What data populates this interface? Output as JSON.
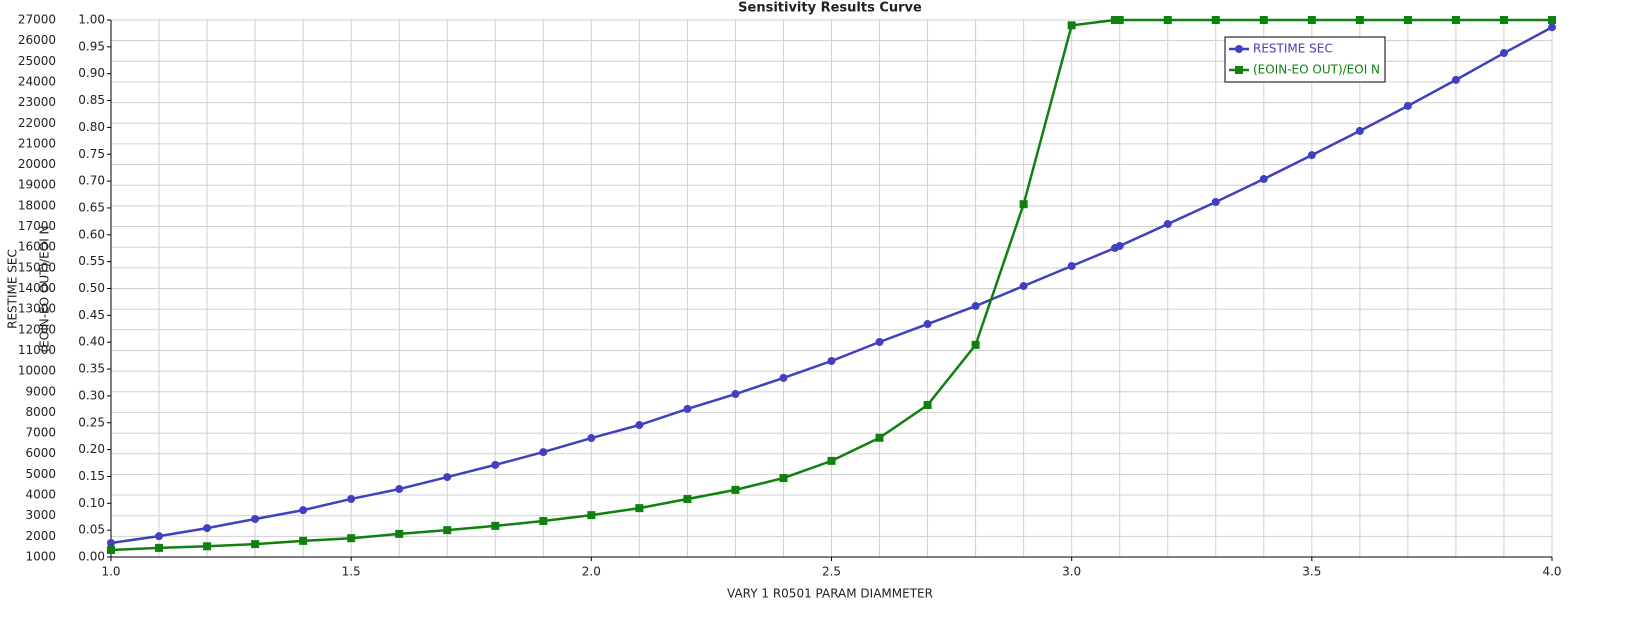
{
  "chart_data": {
    "type": "line",
    "title": "Sensitivity Results Curve",
    "x_label": "VARY    1 R0501 PARAM DIAMMETER",
    "y_label": "RESTIME SEC",
    "y2_label": "(EOIN-EO OUT)/EOI N",
    "x": [
      1.0,
      1.1,
      1.2,
      1.3,
      1.4,
      1.5,
      1.6,
      1.7,
      1.8,
      1.9,
      2.0,
      2.1,
      2.2,
      2.3,
      2.4,
      2.5,
      2.6,
      2.7,
      2.8,
      2.9,
      3.0,
      3.09,
      3.1,
      3.2,
      3.3,
      3.4,
      3.5,
      3.6,
      3.7,
      3.8,
      3.9,
      4.0
    ],
    "series": [
      {
        "name": "RESTIME SEC",
        "color": "#4040c0",
        "marker": "circle",
        "values": [
          1680,
          2010,
          2400,
          2840,
          3270,
          3810,
          4290,
          4870,
          5460,
          6080,
          6760,
          7390,
          8170,
          8890,
          9670,
          10490,
          11410,
          12280,
          13150,
          14120,
          15090,
          15960,
          16060,
          17120,
          18190,
          19300,
          20460,
          21630,
          22840,
          24100,
          25400,
          26650
        ]
      },
      {
        "name": "(EOIN-EO OUT)/EOI N",
        "color": "#108010",
        "marker": "square",
        "axis": "y2",
        "values": [
          0.013,
          0.017,
          0.02,
          0.024,
          0.03,
          0.035,
          0.043,
          0.05,
          0.058,
          0.067,
          0.078,
          0.091,
          0.108,
          0.125,
          0.147,
          0.179,
          0.222,
          0.283,
          0.395,
          0.657,
          0.99,
          1.0,
          1.0,
          1.0,
          1.0,
          1.0,
          1.0,
          1.0,
          1.0,
          1.0,
          1.0,
          1.0
        ]
      }
    ],
    "xlim": [
      1.0,
      4.0
    ],
    "xticks": [
      {
        "value": 1.0,
        "label": "1.0"
      },
      {
        "value": 1.5,
        "label": "1.5"
      },
      {
        "value": 2.0,
        "label": "2.0"
      },
      {
        "value": 2.5,
        "label": "2.5"
      },
      {
        "value": 3.0,
        "label": "3.0"
      },
      {
        "value": 3.5,
        "label": "3.5"
      },
      {
        "value": 4.0,
        "label": "4.0"
      }
    ],
    "xminorticks": [
      1.1,
      1.2,
      1.3,
      1.4,
      1.6,
      1.7,
      1.8,
      1.9,
      2.1,
      2.2,
      2.3,
      2.4,
      2.6,
      2.7,
      2.8,
      2.9,
      3.1,
      3.2,
      3.3,
      3.4,
      3.6,
      3.7,
      3.8,
      3.9
    ],
    "ylim": [
      1000,
      27000
    ],
    "yticks": [
      1000,
      2000,
      3000,
      4000,
      5000,
      6000,
      7000,
      8000,
      9000,
      10000,
      11000,
      12000,
      13000,
      14000,
      15000,
      16000,
      17000,
      18000,
      19000,
      20000,
      21000,
      22000,
      23000,
      24000,
      25000,
      26000,
      27000
    ],
    "y2lim": [
      0,
      1
    ],
    "y2ticks": [
      {
        "value": 0,
        "label": "0.00"
      },
      {
        "value": 0.05,
        "label": "0.05"
      },
      {
        "value": 0.1,
        "label": "0.10"
      },
      {
        "value": 0.15,
        "label": "0.15"
      },
      {
        "value": 0.2,
        "label": "0.20"
      },
      {
        "value": 0.25,
        "label": "0.25"
      },
      {
        "value": 0.3,
        "label": "0.30"
      },
      {
        "value": 0.35,
        "label": "0.35"
      },
      {
        "value": 0.4,
        "label": "0.40"
      },
      {
        "value": 0.45,
        "label": "0.45"
      },
      {
        "value": 0.5,
        "label": "0.50"
      },
      {
        "value": 0.55,
        "label": "0.55"
      },
      {
        "value": 0.6,
        "label": "0.60"
      },
      {
        "value": 0.65,
        "label": "0.65"
      },
      {
        "value": 0.7,
        "label": "0.70"
      },
      {
        "value": 0.75,
        "label": "0.75"
      },
      {
        "value": 0.8,
        "label": "0.80"
      },
      {
        "value": 0.85,
        "label": "0.85"
      },
      {
        "value": 0.9,
        "label": "0.90"
      },
      {
        "value": 0.95,
        "label": "0.95"
      },
      {
        "value": 1,
        "label": "1.00"
      }
    ],
    "grid": true,
    "legend": "top-right"
  }
}
